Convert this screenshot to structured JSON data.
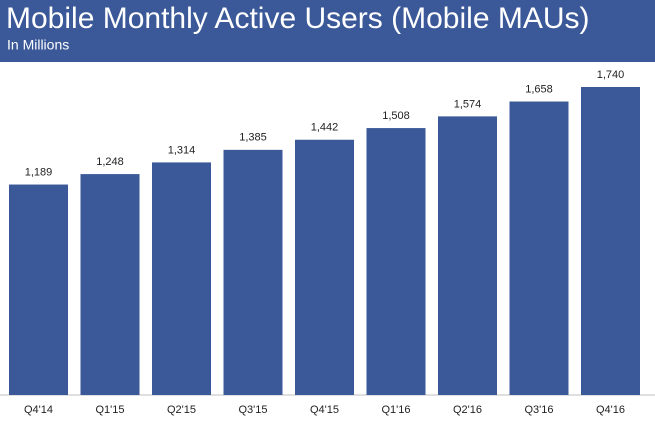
{
  "chart_data": {
    "type": "bar",
    "title": "Mobile Monthly Active Users (Mobile MAUs)",
    "subtitle": "In Millions",
    "categories": [
      "Q4'14",
      "Q1'15",
      "Q2'15",
      "Q3'15",
      "Q4'15",
      "Q1'16",
      "Q2'16",
      "Q3'16",
      "Q4'16"
    ],
    "values": [
      1189,
      1248,
      1314,
      1385,
      1442,
      1508,
      1574,
      1658,
      1740
    ],
    "value_labels": [
      "1,189",
      "1,248",
      "1,314",
      "1,385",
      "1,442",
      "1,508",
      "1,574",
      "1,658",
      "1,740"
    ],
    "color": "#3b5998"
  }
}
